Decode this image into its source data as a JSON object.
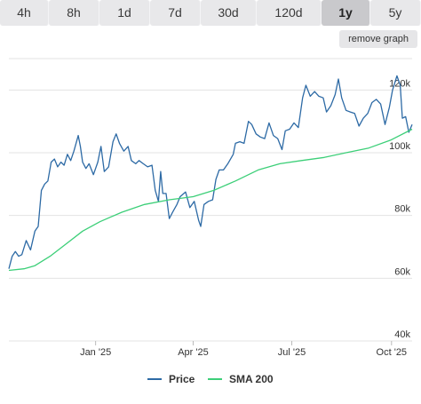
{
  "tabs": [
    {
      "label": "4h",
      "active": false
    },
    {
      "label": "8h",
      "active": false
    },
    {
      "label": "1d",
      "active": false
    },
    {
      "label": "7d",
      "active": false
    },
    {
      "label": "30d",
      "active": false
    },
    {
      "label": "120d",
      "active": false
    },
    {
      "label": "1y",
      "active": true
    },
    {
      "label": "5y",
      "active": false
    }
  ],
  "remove_graph_label": "remove graph",
  "chart_data": {
    "type": "line",
    "title": "",
    "xlabel": "",
    "ylabel": "",
    "x_range": [
      "2024-10-13",
      "2025-10-20"
    ],
    "ylim": [
      40000,
      130000
    ],
    "y_ticks": [
      {
        "value": 40000,
        "label": "40k"
      },
      {
        "value": 60000,
        "label": "60k"
      },
      {
        "value": 80000,
        "label": "80k"
      },
      {
        "value": 100000,
        "label": "100k"
      },
      {
        "value": 120000,
        "label": "120k"
      }
    ],
    "x_ticks": [
      {
        "date": "2025-01-01",
        "label": "Jan '25"
      },
      {
        "date": "2025-04-01",
        "label": "Apr '25"
      },
      {
        "date": "2025-07-01",
        "label": "Jul '25"
      },
      {
        "date": "2025-10-01",
        "label": "Oct '25"
      }
    ],
    "grid": "horizontal",
    "legend_position": "bottom-center",
    "series": [
      {
        "name": "Price",
        "color": "#2d6aa5",
        "points": [
          [
            "2024-10-13",
            63000
          ],
          [
            "2024-10-16",
            67000
          ],
          [
            "2024-10-19",
            68500
          ],
          [
            "2024-10-22",
            67000
          ],
          [
            "2024-10-25",
            67500
          ],
          [
            "2024-10-29",
            72000
          ],
          [
            "2024-11-02",
            69000
          ],
          [
            "2024-11-06",
            75000
          ],
          [
            "2024-11-09",
            76500
          ],
          [
            "2024-11-12",
            88000
          ],
          [
            "2024-11-15",
            90000
          ],
          [
            "2024-11-18",
            91000
          ],
          [
            "2024-11-21",
            97000
          ],
          [
            "2024-11-24",
            98000
          ],
          [
            "2024-11-27",
            95500
          ],
          [
            "2024-11-30",
            97000
          ],
          [
            "2024-12-03",
            96000
          ],
          [
            "2024-12-06",
            99500
          ],
          [
            "2024-12-09",
            97500
          ],
          [
            "2024-12-12",
            100500
          ],
          [
            "2024-12-16",
            105500
          ],
          [
            "2024-12-18",
            102000
          ],
          [
            "2024-12-20",
            97000
          ],
          [
            "2024-12-23",
            95000
          ],
          [
            "2024-12-26",
            96500
          ],
          [
            "2024-12-30",
            93000
          ],
          [
            "2025-01-03",
            97000
          ],
          [
            "2025-01-06",
            102000
          ],
          [
            "2025-01-09",
            94000
          ],
          [
            "2025-01-13",
            95500
          ],
          [
            "2025-01-17",
            103500
          ],
          [
            "2025-01-20",
            106000
          ],
          [
            "2025-01-23",
            103000
          ],
          [
            "2025-01-27",
            100500
          ],
          [
            "2025-01-31",
            102000
          ],
          [
            "2025-02-03",
            97500
          ],
          [
            "2025-02-07",
            96500
          ],
          [
            "2025-02-10",
            97500
          ],
          [
            "2025-02-14",
            96500
          ],
          [
            "2025-02-18",
            95500
          ],
          [
            "2025-02-22",
            96000
          ],
          [
            "2025-02-25",
            88000
          ],
          [
            "2025-02-28",
            84500
          ],
          [
            "2025-03-02",
            94000
          ],
          [
            "2025-03-04",
            87000
          ],
          [
            "2025-03-07",
            87000
          ],
          [
            "2025-03-10",
            79000
          ],
          [
            "2025-03-13",
            81000
          ],
          [
            "2025-03-17",
            83500
          ],
          [
            "2025-03-20",
            86000
          ],
          [
            "2025-03-25",
            87500
          ],
          [
            "2025-03-29",
            82500
          ],
          [
            "2025-04-02",
            84500
          ],
          [
            "2025-04-06",
            78500
          ],
          [
            "2025-04-08",
            76500
          ],
          [
            "2025-04-11",
            83500
          ],
          [
            "2025-04-15",
            84500
          ],
          [
            "2025-04-19",
            85000
          ],
          [
            "2025-04-22",
            91500
          ],
          [
            "2025-04-25",
            94500
          ],
          [
            "2025-04-29",
            94500
          ],
          [
            "2025-05-03",
            96500
          ],
          [
            "2025-05-08",
            99500
          ],
          [
            "2025-05-10",
            103000
          ],
          [
            "2025-05-14",
            103500
          ],
          [
            "2025-05-18",
            103000
          ],
          [
            "2025-05-22",
            110000
          ],
          [
            "2025-05-25",
            109000
          ],
          [
            "2025-05-29",
            106000
          ],
          [
            "2025-06-02",
            105000
          ],
          [
            "2025-06-06",
            104500
          ],
          [
            "2025-06-10",
            109500
          ],
          [
            "2025-06-14",
            105500
          ],
          [
            "2025-06-18",
            104500
          ],
          [
            "2025-06-22",
            101000
          ],
          [
            "2025-06-25",
            107000
          ],
          [
            "2025-06-29",
            107500
          ],
          [
            "2025-07-03",
            109500
          ],
          [
            "2025-07-07",
            108000
          ],
          [
            "2025-07-11",
            117500
          ],
          [
            "2025-07-14",
            121500
          ],
          [
            "2025-07-18",
            118000
          ],
          [
            "2025-07-22",
            119500
          ],
          [
            "2025-07-26",
            118000
          ],
          [
            "2025-07-30",
            117500
          ],
          [
            "2025-08-02",
            113000
          ],
          [
            "2025-08-06",
            115000
          ],
          [
            "2025-08-10",
            118500
          ],
          [
            "2025-08-13",
            123500
          ],
          [
            "2025-08-16",
            117500
          ],
          [
            "2025-08-20",
            113500
          ],
          [
            "2025-08-24",
            113000
          ],
          [
            "2025-08-28",
            112500
          ],
          [
            "2025-09-01",
            108500
          ],
          [
            "2025-09-05",
            111000
          ],
          [
            "2025-09-09",
            112500
          ],
          [
            "2025-09-13",
            116000
          ],
          [
            "2025-09-17",
            117000
          ],
          [
            "2025-09-21",
            115500
          ],
          [
            "2025-09-25",
            109000
          ],
          [
            "2025-09-29",
            114500
          ],
          [
            "2025-10-02",
            120000
          ],
          [
            "2025-10-06",
            124500
          ],
          [
            "2025-10-09",
            121500
          ],
          [
            "2025-10-11",
            111000
          ],
          [
            "2025-10-14",
            111500
          ],
          [
            "2025-10-17",
            106500
          ],
          [
            "2025-10-20",
            109000
          ]
        ]
      },
      {
        "name": "SMA 200",
        "color": "#3ccf78",
        "points": [
          [
            "2024-10-13",
            62500
          ],
          [
            "2024-10-27",
            63000
          ],
          [
            "2024-11-06",
            64000
          ],
          [
            "2024-11-20",
            67000
          ],
          [
            "2024-12-05",
            71000
          ],
          [
            "2024-12-20",
            75000
          ],
          [
            "2025-01-05",
            78000
          ],
          [
            "2025-01-25",
            81000
          ],
          [
            "2025-02-15",
            83500
          ],
          [
            "2025-03-10",
            85000
          ],
          [
            "2025-04-01",
            86000
          ],
          [
            "2025-04-20",
            88000
          ],
          [
            "2025-05-10",
            91000
          ],
          [
            "2025-05-31",
            94500
          ],
          [
            "2025-06-20",
            96500
          ],
          [
            "2025-07-10",
            97500
          ],
          [
            "2025-07-31",
            98500
          ],
          [
            "2025-08-20",
            100000
          ],
          [
            "2025-09-10",
            101500
          ],
          [
            "2025-09-30",
            104000
          ],
          [
            "2025-10-20",
            107500
          ]
        ]
      }
    ]
  }
}
